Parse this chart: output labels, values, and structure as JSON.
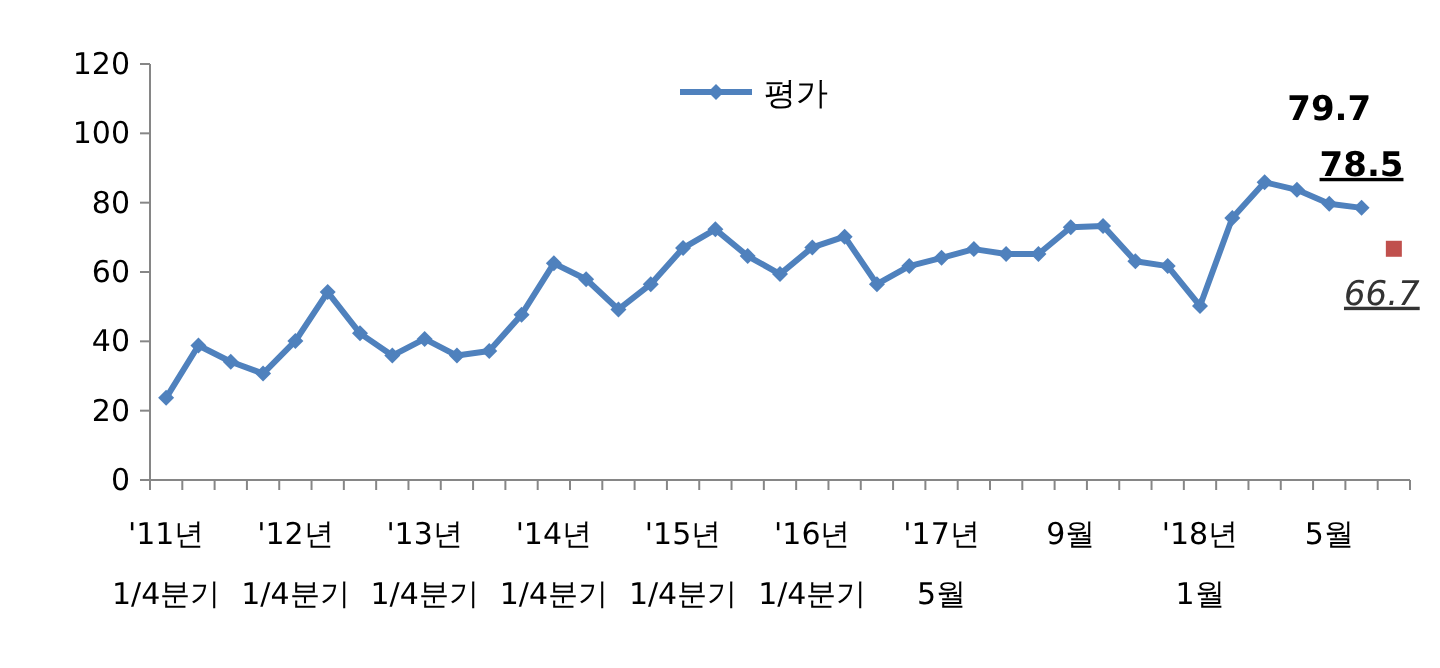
{
  "chart_data": {
    "type": "line",
    "categories": [
      "'11년\n1/4분기",
      null,
      null,
      null,
      "'12년\n1/4분기",
      null,
      null,
      null,
      "'13년\n1/4분기",
      null,
      null,
      null,
      "'14년\n1/4분기",
      null,
      null,
      null,
      "'15년\n1/4분기",
      null,
      null,
      null,
      "'16년\n1/4분기",
      null,
      null,
      null,
      "'17년\n5월",
      null,
      null,
      null,
      "9월",
      null,
      null,
      null,
      "'18년\n1월",
      null,
      null,
      null,
      "5월",
      null,
      null
    ],
    "series": [
      {
        "name": "평가",
        "color": "#4f81bd",
        "marker": "diamond",
        "values": [
          23.7,
          38.8,
          34.1,
          30.7,
          40.1,
          54.2,
          42.3,
          35.9,
          40.7,
          35.9,
          37.2,
          47.7,
          62.5,
          57.9,
          49.2,
          56.5,
          66.9,
          72.3,
          64.6,
          59.4,
          67.1,
          70.2,
          56.5,
          61.7,
          64.1,
          66.6,
          65.2,
          65.2,
          72.9,
          73.3,
          63.1,
          61.7,
          50.2,
          75.6,
          85.9,
          83.7,
          79.7,
          78.5,
          null
        ],
        "value_labels": [
          null,
          null,
          null,
          null,
          null,
          null,
          null,
          null,
          null,
          null,
          null,
          null,
          null,
          null,
          null,
          null,
          null,
          null,
          null,
          null,
          null,
          null,
          null,
          null,
          null,
          null,
          null,
          null,
          null,
          null,
          null,
          null,
          null,
          null,
          null,
          null,
          "79.7",
          "78.5",
          null
        ]
      },
      {
        "type": "scatter",
        "color": "#c0504d",
        "marker": "square",
        "values": [
          null,
          null,
          null,
          null,
          null,
          null,
          null,
          null,
          null,
          null,
          null,
          null,
          null,
          null,
          null,
          null,
          null,
          null,
          null,
          null,
          null,
          null,
          null,
          null,
          null,
          null,
          null,
          null,
          null,
          null,
          null,
          null,
          null,
          null,
          null,
          null,
          null,
          null,
          66.7
        ],
        "value_labels": [
          null,
          null,
          null,
          null,
          null,
          null,
          null,
          null,
          null,
          null,
          null,
          null,
          null,
          null,
          null,
          null,
          null,
          null,
          null,
          null,
          null,
          null,
          null,
          null,
          null,
          null,
          null,
          null,
          null,
          null,
          null,
          null,
          null,
          null,
          null,
          null,
          null,
          null,
          "66.7"
        ]
      }
    ],
    "ylim": [
      0,
      120
    ],
    "yticks": [
      0,
      20,
      40,
      60,
      80,
      100,
      120
    ],
    "grid": false,
    "legend": "top"
  }
}
